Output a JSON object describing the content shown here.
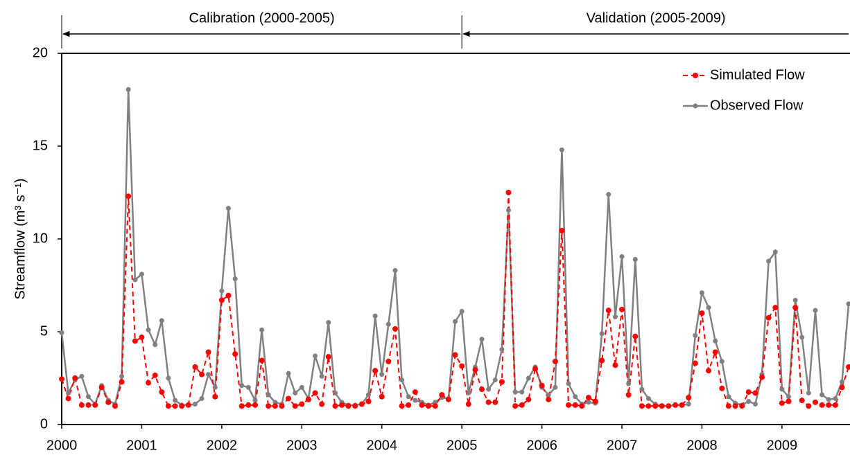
{
  "chart_data": {
    "type": "line",
    "ylabel": "Streamflow (m³ s⁻¹)",
    "annotations": [
      {
        "text": "Calibration (2000-2005)",
        "start": 2000,
        "end": 2005
      },
      {
        "text": "Validation (2005-2009)",
        "start": 2005,
        "end": 2009.85
      }
    ],
    "x": [
      2000,
      2000.083,
      2000.167,
      2000.25,
      2000.333,
      2000.417,
      2000.5,
      2000.583,
      2000.667,
      2000.75,
      2000.833,
      2000.917,
      2001,
      2001.083,
      2001.167,
      2001.25,
      2001.333,
      2001.417,
      2001.5,
      2001.583,
      2001.667,
      2001.75,
      2001.833,
      2001.917,
      2002,
      2002.083,
      2002.167,
      2002.25,
      2002.333,
      2002.417,
      2002.5,
      2002.583,
      2002.667,
      2002.75,
      2002.833,
      2002.917,
      2003,
      2003.083,
      2003.167,
      2003.25,
      2003.333,
      2003.417,
      2003.5,
      2003.583,
      2003.667,
      2003.75,
      2003.833,
      2003.917,
      2004,
      2004.083,
      2004.167,
      2004.25,
      2004.333,
      2004.417,
      2004.5,
      2004.583,
      2004.667,
      2004.75,
      2004.833,
      2004.917,
      2005,
      2005.083,
      2005.167,
      2005.25,
      2005.333,
      2005.417,
      2005.5,
      2005.583,
      2005.667,
      2005.75,
      2005.833,
      2005.917,
      2006,
      2006.083,
      2006.167,
      2006.25,
      2006.333,
      2006.417,
      2006.5,
      2006.583,
      2006.667,
      2006.75,
      2006.833,
      2006.917,
      2007,
      2007.083,
      2007.167,
      2007.25,
      2007.333,
      2007.417,
      2007.5,
      2007.583,
      2007.667,
      2007.75,
      2007.833,
      2007.917,
      2008,
      2008.083,
      2008.167,
      2008.25,
      2008.333,
      2008.417,
      2008.5,
      2008.583,
      2008.667,
      2008.75,
      2008.833,
      2008.917,
      2009,
      2009.083,
      2009.167,
      2009.25,
      2009.333,
      2009.417,
      2009.5,
      2009.583,
      2009.667,
      2009.75,
      2009.833
    ],
    "series": [
      {
        "name": "Simulated Flow",
        "color": "#ff0000",
        "dash": true,
        "values": [
          2.45,
          1.4,
          2.5,
          1.05,
          1.05,
          1.05,
          2.0,
          1.2,
          1.0,
          2.3,
          12.3,
          4.5,
          4.7,
          2.25,
          2.65,
          1.75,
          1.0,
          1.0,
          1.0,
          1.05,
          3.1,
          2.7,
          3.9,
          1.5,
          6.7,
          6.95,
          3.8,
          1.0,
          1.05,
          1.05,
          3.45,
          1.0,
          1.0,
          1.0,
          1.4,
          1.0,
          1.1,
          1.35,
          1.7,
          1.1,
          3.65,
          1.0,
          1.05,
          1.0,
          1.0,
          1.1,
          1.25,
          2.9,
          1.5,
          3.4,
          5.15,
          1.0,
          1.05,
          1.75,
          1.05,
          1.0,
          1.0,
          1.6,
          1.35,
          3.75,
          3.15,
          1.1,
          2.95,
          1.9,
          1.2,
          1.2,
          2.3,
          12.5,
          1.0,
          1.05,
          1.35,
          3.0,
          2.1,
          1.35,
          3.4,
          10.45,
          1.05,
          1.05,
          1.0,
          1.45,
          1.25,
          3.45,
          6.15,
          3.2,
          6.2,
          1.6,
          4.75,
          1.0,
          1.0,
          1.0,
          1.0,
          1.0,
          1.05,
          1.05,
          1.45,
          3.3,
          6.0,
          2.9,
          3.9,
          1.95,
          1.0,
          1.0,
          1.0,
          1.75,
          1.7,
          2.55,
          5.75,
          6.3,
          1.15,
          1.25,
          6.3,
          1.3,
          1.0,
          1.2,
          1.05,
          1.05,
          1.05,
          2.0,
          3.1
        ]
      },
      {
        "name": "Observed Flow",
        "color": "#808080",
        "dash": false,
        "values": [
          4.95,
          1.7,
          2.4,
          2.6,
          1.5,
          1.1,
          2.1,
          1.3,
          1.1,
          2.6,
          18.05,
          7.8,
          8.1,
          5.1,
          4.3,
          5.6,
          2.5,
          1.3,
          1.05,
          1.05,
          1.1,
          1.4,
          2.7,
          2.0,
          7.2,
          11.65,
          7.85,
          2.1,
          2.0,
          1.3,
          5.1,
          1.6,
          1.2,
          1.1,
          2.75,
          1.7,
          2.0,
          1.4,
          3.7,
          2.6,
          5.5,
          1.7,
          1.2,
          1.05,
          1.05,
          1.1,
          1.6,
          5.85,
          2.7,
          5.4,
          8.3,
          2.4,
          1.5,
          1.3,
          1.2,
          1.05,
          1.2,
          1.45,
          1.4,
          5.55,
          6.1,
          1.7,
          3.1,
          4.6,
          1.9,
          2.4,
          4.05,
          11.55,
          1.75,
          1.75,
          2.5,
          3.1,
          2.0,
          1.6,
          2.0,
          14.8,
          2.2,
          1.5,
          1.1,
          1.2,
          1.15,
          4.9,
          12.4,
          5.8,
          9.05,
          2.2,
          8.9,
          1.9,
          1.4,
          1.1,
          1.0,
          1.0,
          1.05,
          1.05,
          1.1,
          4.8,
          7.1,
          6.3,
          4.5,
          3.4,
          1.5,
          1.15,
          1.05,
          1.25,
          1.1,
          2.7,
          8.8,
          9.3,
          1.9,
          1.5,
          6.7,
          4.7,
          1.7,
          6.15,
          1.6,
          1.35,
          1.4,
          2.3,
          6.5
        ]
      }
    ],
    "xlim": [
      2000,
      2009.85
    ],
    "xticks": [
      2000,
      2001,
      2002,
      2003,
      2004,
      2005,
      2006,
      2007,
      2008,
      2009
    ],
    "ylim": [
      0,
      20
    ],
    "yticks": [
      0,
      5,
      10,
      15,
      20
    ],
    "legend": "upper right"
  }
}
